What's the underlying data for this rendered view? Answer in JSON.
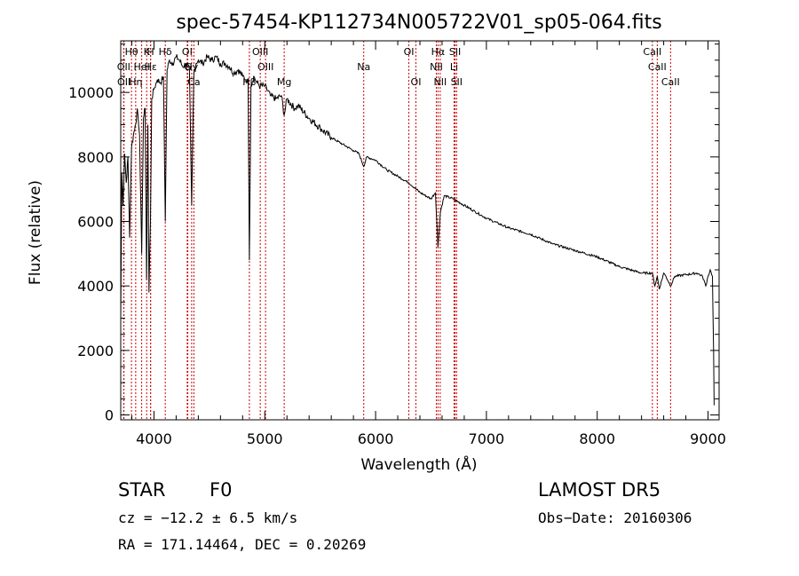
{
  "chart_data": {
    "type": "line",
    "title": "spec-57454-KP112734N005722V01_sp05-064.fits",
    "xlabel": "Wavelength (Å)",
    "ylabel": "Flux (relative)",
    "xlim": [
      3700,
      9100
    ],
    "ylim": [
      -150,
      11600
    ],
    "xticks": [
      4000,
      5000,
      6000,
      7000,
      8000,
      9000
    ],
    "yticks": [
      0,
      2000,
      4000,
      6000,
      8000,
      10000
    ],
    "grid": false,
    "line_color": "#000000",
    "marker_color": "#cc0000",
    "series": [
      {
        "x": [
          3700,
          3710,
          3720,
          3735,
          3750,
          3765,
          3780,
          3798,
          3820,
          3835,
          3850,
          3870,
          3889,
          3905,
          3920,
          3933,
          3945,
          3955,
          3968,
          3980,
          4000,
          4030,
          4060,
          4085,
          4102,
          4118,
          4140,
          4170,
          4200,
          4230,
          4260,
          4290,
          4320,
          4340,
          4360,
          4380,
          4400,
          4440,
          4480,
          4520,
          4560,
          4600,
          4640,
          4680,
          4720,
          4760,
          4800,
          4830,
          4850,
          4861,
          4875,
          4900,
          4930,
          4960,
          5000,
          5050,
          5100,
          5150,
          5175,
          5200,
          5270,
          5300,
          5400,
          5500,
          5600,
          5700,
          5800,
          5850,
          5893,
          5920,
          6000,
          6100,
          6200,
          6300,
          6400,
          6500,
          6540,
          6563,
          6585,
          6620,
          6700,
          6800,
          6900,
          7000,
          7200,
          7400,
          7600,
          7800,
          8000,
          8200,
          8400,
          8498,
          8520,
          8542,
          8560,
          8600,
          8620,
          8662,
          8700,
          8800,
          8900,
          8950,
          8980,
          9000,
          9020,
          9040,
          9050,
          9055
        ],
        "y": [
          3000,
          7500,
          6500,
          8100,
          7200,
          8000,
          5500,
          8300,
          8800,
          9000,
          9500,
          8700,
          5000,
          9200,
          9500,
          4200,
          9000,
          3800,
          6000,
          9800,
          10100,
          10400,
          10300,
          10500,
          6000,
          10700,
          11000,
          10900,
          11100,
          11000,
          10800,
          10900,
          10700,
          6500,
          10600,
          10900,
          11000,
          10900,
          11100,
          11000,
          11100,
          10900,
          10900,
          10800,
          10600,
          10700,
          10500,
          10400,
          10300,
          4800,
          10200,
          10500,
          10300,
          10200,
          10200,
          9900,
          9800,
          9900,
          9300,
          9800,
          9500,
          9600,
          9200,
          8900,
          8600,
          8400,
          8200,
          8100,
          7700,
          8000,
          7900,
          7600,
          7400,
          7200,
          6900,
          6700,
          6900,
          5200,
          6300,
          6800,
          6700,
          6500,
          6300,
          6100,
          5800,
          5600,
          5300,
          5100,
          4900,
          4600,
          4400,
          4400,
          4000,
          4300,
          3900,
          4400,
          4300,
          4000,
          4300,
          4350,
          4400,
          4300,
          4000,
          4300,
          4500,
          4300,
          2000,
          300
        ]
      }
    ],
    "lines": [
      {
        "label": "Hθ",
        "x": 3797,
        "row": 0
      },
      {
        "label": "K",
        "x": 3934,
        "row": 0
      },
      {
        "label": "H",
        "x": 3969,
        "row": 0
      },
      {
        "label": "Hδ",
        "x": 4102,
        "row": 0
      },
      {
        "label": "OII",
        "x": 3727,
        "row": 1
      },
      {
        "label": "HeI",
        "x": 3889,
        "row": 1
      },
      {
        "label": "Hε",
        "x": 3970,
        "row": 1
      },
      {
        "label": "OII",
        "x": 3729,
        "row": 2
      },
      {
        "label": "Hη",
        "x": 3835,
        "row": 2
      },
      {
        "label": "OI",
        "x": 4300,
        "row": 0
      },
      {
        "label": "G",
        "x": 4305,
        "row": 1
      },
      {
        "label": "Hγ",
        "x": 4340,
        "row": 1
      },
      {
        "label": "Ca",
        "x": 4360,
        "row": 2
      },
      {
        "label": "OIII",
        "x": 4959,
        "row": 0
      },
      {
        "label": "OIII",
        "x": 5007,
        "row": 1
      },
      {
        "label": "Hβ",
        "x": 4861,
        "row": 2
      },
      {
        "label": "Mg",
        "x": 5175,
        "row": 2
      },
      {
        "label": "Na",
        "x": 5893,
        "row": 1
      },
      {
        "label": "OI",
        "x": 6300,
        "row": 0
      },
      {
        "label": "OI",
        "x": 6364,
        "row": 2
      },
      {
        "label": "Hα",
        "x": 6563,
        "row": 0
      },
      {
        "label": "NII",
        "x": 6548,
        "row": 1
      },
      {
        "label": "NII",
        "x": 6583,
        "row": 2
      },
      {
        "label": "SII",
        "x": 6717,
        "row": 0
      },
      {
        "label": "Li",
        "x": 6708,
        "row": 1
      },
      {
        "label": "SII",
        "x": 6731,
        "row": 2
      },
      {
        "label": "CaII",
        "x": 8498,
        "row": 0
      },
      {
        "label": "CaII",
        "x": 8542,
        "row": 1
      },
      {
        "label": "CaII",
        "x": 8662,
        "row": 2
      }
    ]
  },
  "info": {
    "object_type": "STAR",
    "subclass": "F0",
    "survey": "LAMOST DR5",
    "redshift": "cz = −12.2 ± 6.5 km/s",
    "obs_date": "Obs−Date: 20160306",
    "coords": "RA = 171.14464, DEC =   0.20269"
  }
}
